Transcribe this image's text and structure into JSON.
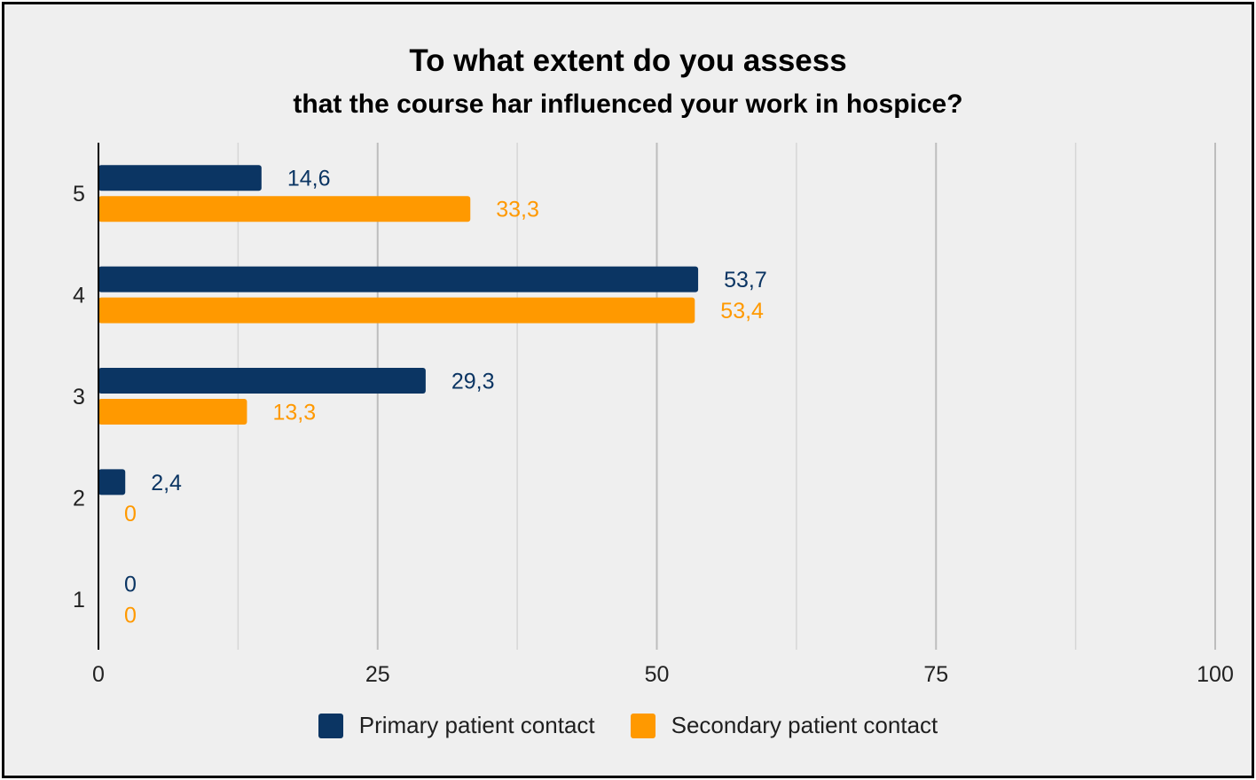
{
  "chart_data": {
    "type": "bar",
    "orientation": "horizontal",
    "title": "To what extent do you assess",
    "subtitle": "that the course har influenced your work in hospice?",
    "categories": [
      "5",
      "4",
      "3",
      "2",
      "1"
    ],
    "series": [
      {
        "name": "Primary patient contact",
        "color": "#0b3563",
        "values": [
          14.6,
          53.7,
          29.3,
          2.4,
          0
        ],
        "labels": [
          "14,6",
          "53,7",
          "29,3",
          "2,4",
          "0"
        ]
      },
      {
        "name": "Secondary patient contact",
        "color": "#ff9900",
        "values": [
          33.3,
          53.4,
          13.3,
          0,
          0
        ],
        "labels": [
          "33,3",
          "53,4",
          "13,3",
          "0",
          "0"
        ]
      }
    ],
    "xlim": [
      0,
      100
    ],
    "xticks": [
      0,
      25,
      50,
      75,
      100
    ],
    "grid": true,
    "legend": "bottom"
  }
}
